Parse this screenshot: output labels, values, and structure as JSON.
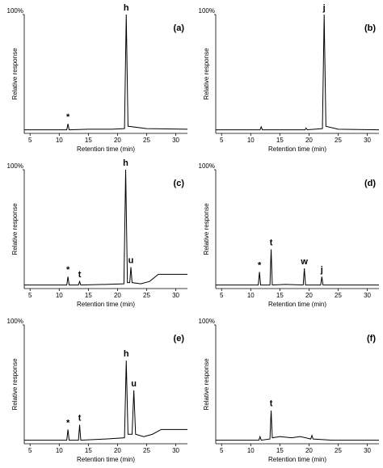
{
  "chart_data": [
    {
      "type": "line",
      "title": "(a)",
      "xlabel": "Retention time (min)",
      "ylabel": "Relative response",
      "color": "#000000",
      "x": [
        4,
        8,
        10,
        11.3,
        11.5,
        11.7,
        15,
        19,
        21.2,
        21.5,
        21.8,
        25,
        32
      ],
      "values": [
        3,
        3,
        3,
        3,
        8,
        3,
        3.5,
        3.5,
        4,
        100,
        6,
        4,
        3.5
      ],
      "xlim": [
        4,
        32
      ],
      "xticks": [
        5,
        10,
        15,
        20,
        25,
        30
      ],
      "ylim": [
        0,
        100
      ],
      "yticks": [
        {
          "value": 100,
          "label": "100%"
        }
      ],
      "annotations": [
        {
          "text": "*",
          "x": 11.5,
          "y": 8
        },
        {
          "text": "h",
          "x": 21.5,
          "y": 100
        }
      ]
    },
    {
      "type": "line",
      "title": "(b)",
      "xlabel": "Retention time (min)",
      "ylabel": "Relative response",
      "color": "#000000",
      "x": [
        4,
        8,
        11.6,
        11.8,
        12,
        15,
        19.3,
        19.5,
        19.7,
        22.3,
        22.6,
        22.9,
        25,
        32
      ],
      "values": [
        3,
        3,
        3,
        5.5,
        3,
        3,
        3,
        4.5,
        3,
        4,
        100,
        6,
        3.5,
        3
      ],
      "xlim": [
        4,
        32
      ],
      "xticks": [
        5,
        10,
        15,
        20,
        25,
        30
      ],
      "ylim": [
        0,
        100
      ],
      "yticks": [
        {
          "value": 100,
          "label": "100%"
        }
      ],
      "annotations": [
        {
          "text": "j",
          "x": 22.6,
          "y": 100
        }
      ]
    },
    {
      "type": "line",
      "title": "(c)",
      "xlabel": "Retention time (min)",
      "ylabel": "Relative response",
      "color": "#000000",
      "x": [
        4,
        9,
        11.3,
        11.5,
        11.7,
        13.3,
        13.5,
        13.7,
        18,
        21.1,
        21.4,
        21.7,
        22.1,
        22.3,
        22.5,
        24,
        25.5,
        27,
        32
      ],
      "values": [
        3,
        3,
        3,
        10,
        3,
        3,
        6,
        3,
        3.5,
        4,
        100,
        5,
        5,
        18,
        5,
        4,
        6,
        12,
        12
      ],
      "xlim": [
        4,
        32
      ],
      "xticks": [
        5,
        10,
        15,
        20,
        25,
        30
      ],
      "ylim": [
        0,
        100
      ],
      "yticks": [
        {
          "value": 100,
          "label": "100%"
        }
      ],
      "annotations": [
        {
          "text": "*",
          "x": 11.5,
          "y": 10
        },
        {
          "text": "t",
          "x": 13.5,
          "y": 6
        },
        {
          "text": "h",
          "x": 21.4,
          "y": 100
        },
        {
          "text": "u",
          "x": 22.3,
          "y": 18
        }
      ]
    },
    {
      "type": "line",
      "title": "(d)",
      "xlabel": "Retention time (min)",
      "ylabel": "Relative response",
      "color": "#000000",
      "x": [
        4,
        9,
        11.3,
        11.5,
        11.7,
        13.3,
        13.5,
        13.7,
        16,
        19,
        19.2,
        19.4,
        22,
        22.2,
        22.4,
        26,
        32
      ],
      "values": [
        3,
        3,
        3,
        14,
        3,
        3,
        33,
        3,
        3.5,
        3,
        17,
        3,
        3,
        10,
        3,
        3,
        3
      ],
      "xlim": [
        4,
        32
      ],
      "xticks": [
        5,
        10,
        15,
        20,
        25,
        30
      ],
      "ylim": [
        0,
        100
      ],
      "yticks": [
        {
          "value": 100,
          "label": "100%"
        }
      ],
      "annotations": [
        {
          "text": "*",
          "x": 11.5,
          "y": 14
        },
        {
          "text": "t",
          "x": 13.5,
          "y": 33
        },
        {
          "text": "w",
          "x": 19.2,
          "y": 17
        },
        {
          "text": "j",
          "x": 22.2,
          "y": 10
        }
      ]
    },
    {
      "type": "line",
      "title": "(e)",
      "xlabel": "Retention time (min)",
      "ylabel": "Relative response",
      "color": "#000000",
      "x": [
        4,
        9,
        11.3,
        11.5,
        11.7,
        13.3,
        13.5,
        13.7,
        18,
        21.2,
        21.5,
        21.8,
        22.5,
        22.8,
        23.1,
        24.5,
        26,
        27.5,
        32
      ],
      "values": [
        3,
        3,
        3,
        12,
        3,
        3,
        16,
        3,
        4,
        5,
        70,
        8,
        8,
        45,
        8,
        6,
        8,
        12,
        12
      ],
      "xlim": [
        4,
        32
      ],
      "xticks": [
        5,
        10,
        15,
        20,
        25,
        30
      ],
      "ylim": [
        0,
        100
      ],
      "yticks": [
        {
          "value": 100,
          "label": "100%"
        }
      ],
      "annotations": [
        {
          "text": "*",
          "x": 11.5,
          "y": 12
        },
        {
          "text": "t",
          "x": 13.5,
          "y": 16
        },
        {
          "text": "h",
          "x": 21.5,
          "y": 70
        },
        {
          "text": "u",
          "x": 22.8,
          "y": 45
        }
      ]
    },
    {
      "type": "line",
      "title": "(f)",
      "xlabel": "Retention time (min)",
      "ylabel": "Relative response",
      "color": "#000000",
      "x": [
        4,
        9,
        11.4,
        11.6,
        11.8,
        13.3,
        13.5,
        13.7,
        15,
        17,
        18.5,
        20.3,
        20.5,
        20.7,
        24,
        32
      ],
      "values": [
        3,
        3,
        3,
        6,
        3,
        4,
        28,
        5,
        6,
        5,
        6,
        4,
        7,
        4,
        3,
        3
      ],
      "xlim": [
        4,
        32
      ],
      "xticks": [
        5,
        10,
        15,
        20,
        25,
        30
      ],
      "ylim": [
        0,
        100
      ],
      "yticks": [
        {
          "value": 100,
          "label": "100%"
        }
      ],
      "annotations": [
        {
          "text": "t",
          "x": 13.5,
          "y": 28
        }
      ]
    }
  ]
}
